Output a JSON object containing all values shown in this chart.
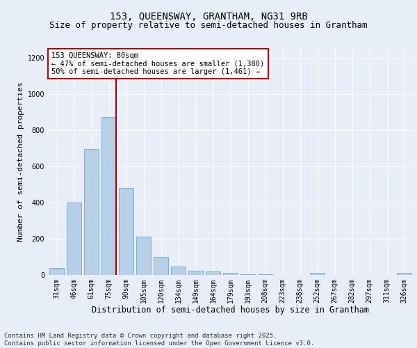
{
  "title1": "153, QUEENSWAY, GRANTHAM, NG31 9RB",
  "title2": "Size of property relative to semi-detached houses in Grantham",
  "xlabel": "Distribution of semi-detached houses by size in Grantham",
  "ylabel": "Number of semi-detached properties",
  "categories": [
    "31sqm",
    "46sqm",
    "61sqm",
    "75sqm",
    "90sqm",
    "105sqm",
    "120sqm",
    "134sqm",
    "149sqm",
    "164sqm",
    "179sqm",
    "193sqm",
    "208sqm",
    "223sqm",
    "238sqm",
    "252sqm",
    "267sqm",
    "282sqm",
    "297sqm",
    "311sqm",
    "326sqm"
  ],
  "values": [
    40,
    400,
    695,
    875,
    480,
    210,
    100,
    45,
    25,
    18,
    10,
    5,
    2,
    0,
    0,
    10,
    0,
    0,
    0,
    0,
    10
  ],
  "bar_color": "#b8cfe8",
  "bar_edge_color": "#6fa8d0",
  "vline_x_index": 3,
  "vline_color": "#aa0000",
  "annotation_text": "153 QUEENSWAY: 80sqm\n← 47% of semi-detached houses are smaller (1,380)\n50% of semi-detached houses are larger (1,461) →",
  "annotation_box_color": "#ffffff",
  "annotation_box_edge_color": "#cc0000",
  "ylim": [
    0,
    1250
  ],
  "yticks": [
    0,
    200,
    400,
    600,
    800,
    1000,
    1200
  ],
  "footer_text": "Contains HM Land Registry data © Crown copyright and database right 2025.\nContains public sector information licensed under the Open Government Licence v3.0.",
  "background_color": "#e8eef8",
  "plot_bg_color": "#e8eef8",
  "grid_color": "#ffffff",
  "title1_fontsize": 10,
  "title2_fontsize": 9,
  "xlabel_fontsize": 8.5,
  "ylabel_fontsize": 8,
  "tick_fontsize": 7,
  "annotation_fontsize": 7.5,
  "footer_fontsize": 6.5
}
